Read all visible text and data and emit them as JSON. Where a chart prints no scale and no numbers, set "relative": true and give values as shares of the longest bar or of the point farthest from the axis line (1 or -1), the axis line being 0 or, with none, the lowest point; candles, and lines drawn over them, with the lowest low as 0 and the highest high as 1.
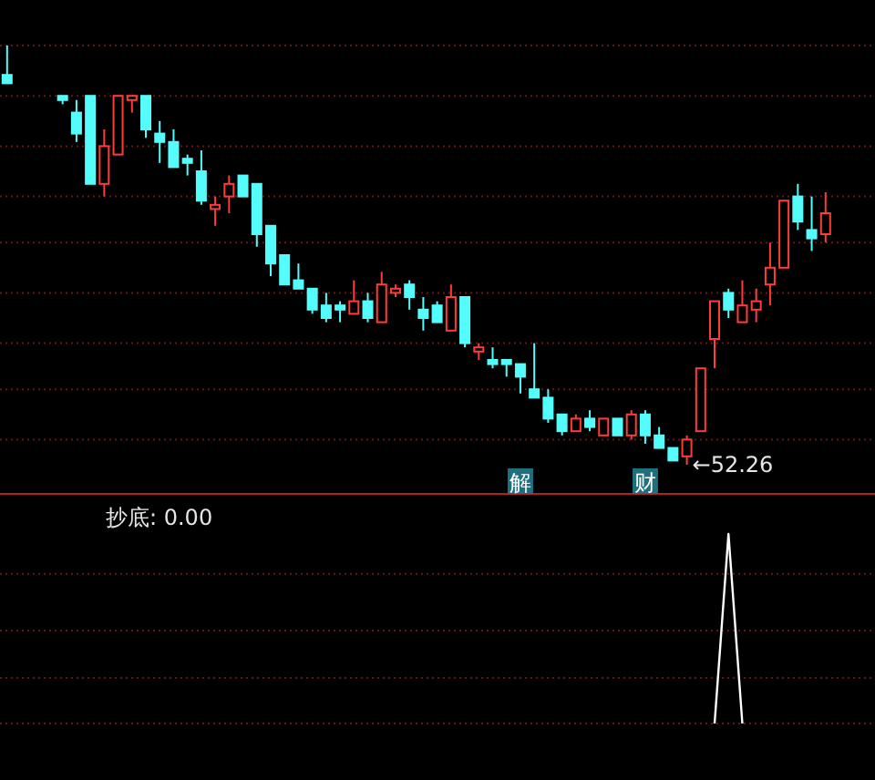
{
  "chart_data": [
    {
      "type": "candlestick",
      "relative": true,
      "ref_lines": [
        {
          "axis": "y",
          "value": 1.0,
          "color": "#6a1414",
          "line_style": "dotted"
        },
        {
          "axis": "y",
          "value": 0.88,
          "color": "#6a1414",
          "line_style": "dotted"
        },
        {
          "axis": "y",
          "value": 0.76,
          "color": "#6a1414",
          "line_style": "dotted"
        },
        {
          "axis": "y",
          "value": 0.64,
          "color": "#6a1414",
          "line_style": "dotted"
        },
        {
          "axis": "y",
          "value": 0.53,
          "color": "#6a1414",
          "line_style": "dotted"
        },
        {
          "axis": "y",
          "value": 0.41,
          "color": "#6a1414",
          "line_style": "dotted"
        },
        {
          "axis": "y",
          "value": 0.29,
          "color": "#6a1414",
          "line_style": "dotted"
        },
        {
          "axis": "y",
          "value": 0.18,
          "color": "#6a1414",
          "line_style": "dotted"
        },
        {
          "axis": "y",
          "value": 0.06,
          "color": "#6a1414",
          "line_style": "dotted"
        }
      ],
      "categories": [
        null,
        null,
        null,
        null,
        null,
        null,
        null,
        null,
        null,
        null,
        null,
        null,
        null,
        null,
        null,
        null,
        null,
        null,
        null,
        null,
        null,
        null,
        null,
        null,
        null,
        null,
        null,
        null,
        null,
        null,
        null,
        null,
        null,
        null,
        null,
        null,
        null,
        null,
        null,
        null,
        null,
        null,
        null,
        null,
        null,
        null,
        null,
        null,
        null,
        null,
        null,
        null,
        null,
        null,
        null,
        null,
        null,
        null,
        null,
        null
      ],
      "ohlc": [
        [
          0.93,
          1,
          0.91,
          0.91
        ],
        null,
        null,
        null,
        [
          0.88,
          0.88,
          0.86,
          0.87
        ],
        [
          0.84,
          0.87,
          0.77,
          0.79
        ],
        [
          0.88,
          0.88,
          0.67,
          0.67
        ],
        [
          0.67,
          0.8,
          0.64,
          0.76
        ],
        [
          0.74,
          0.88,
          0.74,
          0.88
        ],
        [
          0.87,
          0.88,
          0.84,
          0.88
        ],
        [
          0.88,
          0.88,
          0.78,
          0.8
        ],
        [
          0.79,
          0.82,
          0.72,
          0.77
        ],
        [
          0.77,
          0.8,
          0.71,
          0.71
        ],
        [
          0.73,
          0.74,
          0.69,
          0.72
        ],
        [
          0.7,
          0.75,
          0.62,
          0.63
        ],
        [
          0.61,
          0.64,
          0.57,
          0.62
        ],
        [
          0.64,
          0.69,
          0.6,
          0.67
        ],
        [
          0.69,
          0.69,
          0.64,
          0.64
        ],
        [
          0.67,
          0.67,
          0.52,
          0.55
        ],
        [
          0.57,
          0.57,
          0.45,
          0.48
        ],
        [
          0.5,
          0.5,
          0.43,
          0.43
        ],
        [
          0.44,
          0.48,
          0.42,
          0.42
        ],
        [
          0.42,
          0.42,
          0.36,
          0.37
        ],
        [
          0.38,
          0.41,
          0.34,
          0.35
        ],
        [
          0.38,
          0.39,
          0.34,
          0.37
        ],
        [
          0.36,
          0.44,
          0.36,
          0.39
        ],
        [
          0.39,
          0.41,
          0.34,
          0.35
        ],
        [
          0.34,
          0.46,
          0.34,
          0.43
        ],
        [
          0.41,
          0.43,
          0.4,
          0.42
        ],
        [
          0.43,
          0.44,
          0.37,
          0.4
        ],
        [
          0.37,
          0.4,
          0.32,
          0.35
        ],
        [
          0.38,
          0.39,
          0.34,
          0.34
        ],
        [
          0.32,
          0.43,
          0.32,
          0.4
        ],
        [
          0.4,
          0.4,
          0.28,
          0.29
        ],
        [
          0.27,
          0.29,
          0.25,
          0.28
        ],
        [
          0.25,
          0.28,
          0.23,
          0.24
        ],
        [
          0.25,
          0.25,
          0.21,
          0.24
        ],
        [
          0.24,
          0.24,
          0.17,
          0.21
        ],
        [
          0.18,
          0.29,
          0.16,
          0.16
        ],
        [
          0.16,
          0.18,
          0.1,
          0.11
        ],
        [
          0.12,
          0.12,
          0.07,
          0.08
        ],
        [
          0.08,
          0.12,
          0.08,
          0.11
        ],
        [
          0.11,
          0.13,
          0.08,
          0.09
        ],
        [
          0.07,
          0.11,
          0.07,
          0.11
        ],
        [
          0.11,
          0.11,
          0.07,
          0.07
        ],
        [
          0.07,
          0.13,
          0.06,
          0.12
        ],
        [
          0.12,
          0.13,
          0.05,
          0.07
        ],
        [
          0.07,
          0.09,
          0.04,
          0.04
        ],
        [
          0.04,
          0.04,
          0.01,
          0.01
        ],
        [
          0.02,
          0.07,
          0,
          0.06
        ],
        [
          0.08,
          0.23,
          0.08,
          0.23
        ],
        [
          0.3,
          0.39,
          0.23,
          0.39
        ],
        [
          0.41,
          0.42,
          0.35,
          0.37
        ],
        [
          0.34,
          0.44,
          0.34,
          0.38
        ],
        [
          0.37,
          0.42,
          0.34,
          0.39
        ],
        [
          0.43,
          0.53,
          0.38,
          0.47
        ],
        [
          0.47,
          0.63,
          0.47,
          0.63
        ],
        [
          0.64,
          0.67,
          0.56,
          0.58
        ],
        [
          0.56,
          0.64,
          0.51,
          0.54
        ],
        [
          0.55,
          0.65,
          0.53,
          0.6
        ]
      ],
      "colors": [
        "#54fcfc",
        null,
        null,
        null,
        "#54fcfc",
        "#54fcfc",
        "#54fcfc",
        "#ff3c3c",
        "#ff3c3c",
        "#ff3c3c",
        "#54fcfc",
        "#54fcfc",
        "#54fcfc",
        "#54fcfc",
        "#54fcfc",
        "#ff3c3c",
        "#ff3c3c",
        "#54fcfc",
        "#54fcfc",
        "#54fcfc",
        "#54fcfc",
        "#54fcfc",
        "#54fcfc",
        "#54fcfc",
        "#54fcfc",
        "#ff3c3c",
        "#54fcfc",
        "#ff3c3c",
        "#ff3c3c",
        "#54fcfc",
        "#54fcfc",
        "#54fcfc",
        "#ff3c3c",
        "#54fcfc",
        "#ff3c3c",
        "#54fcfc",
        "#54fcfc",
        "#54fcfc",
        "#54fcfc",
        "#54fcfc",
        "#54fcfc",
        "#ff3c3c",
        "#54fcfc",
        "#ff3c3c",
        "#54fcfc",
        "#ff3c3c",
        "#54fcfc",
        "#54fcfc",
        "#54fcfc",
        "#ff3c3c",
        "#ff3c3c",
        "#ff3c3c",
        "#54fcfc",
        "#ff3c3c",
        "#ff3c3c",
        "#ff3c3c",
        "#ff3c3c",
        "#54fcfc",
        "#54fcfc",
        "#ff3c3c"
      ],
      "annotations": [
        "解",
        "财",
        "←52.26"
      ]
    },
    {
      "type": "line",
      "relative": true,
      "title": "抄底: 0.00",
      "ref_lines": [
        {
          "axis": "y",
          "value": 0.79,
          "color": "#6a1414",
          "line_style": "dotted"
        },
        {
          "axis": "y",
          "value": 0.49,
          "color": "#6a1414",
          "line_style": "dotted"
        },
        {
          "axis": "y",
          "value": 0.24,
          "color": "#6a1414",
          "line_style": "dotted"
        },
        {
          "axis": "y",
          "value": 0,
          "color": "#6a1414",
          "line_style": "dotted"
        }
      ],
      "categories": [
        null,
        null,
        null,
        null,
        null,
        null,
        null,
        null,
        null,
        null,
        null,
        null,
        null,
        null,
        null,
        null,
        null,
        null,
        null,
        null,
        null,
        null,
        null,
        null,
        null,
        null,
        null,
        null,
        null,
        null,
        null,
        null,
        null,
        null,
        null,
        null,
        null,
        null,
        null,
        null,
        null,
        null,
        null,
        null,
        null,
        null,
        null,
        null,
        null,
        null,
        null,
        null,
        null,
        null,
        null,
        null,
        null,
        null,
        null,
        null
      ],
      "series": [
        {
          "color": "#ffffff",
          "values": [
            null,
            null,
            null,
            null,
            null,
            null,
            null,
            null,
            null,
            null,
            null,
            null,
            null,
            null,
            null,
            null,
            null,
            null,
            null,
            null,
            null,
            null,
            null,
            null,
            null,
            null,
            null,
            null,
            null,
            null,
            null,
            null,
            null,
            null,
            null,
            null,
            null,
            null,
            null,
            null,
            null,
            null,
            null,
            null,
            null,
            null,
            null,
            null,
            null,
            null,
            null,
            0,
            1,
            0,
            null,
            null,
            null,
            null,
            null,
            null
          ]
        }
      ]
    }
  ]
}
